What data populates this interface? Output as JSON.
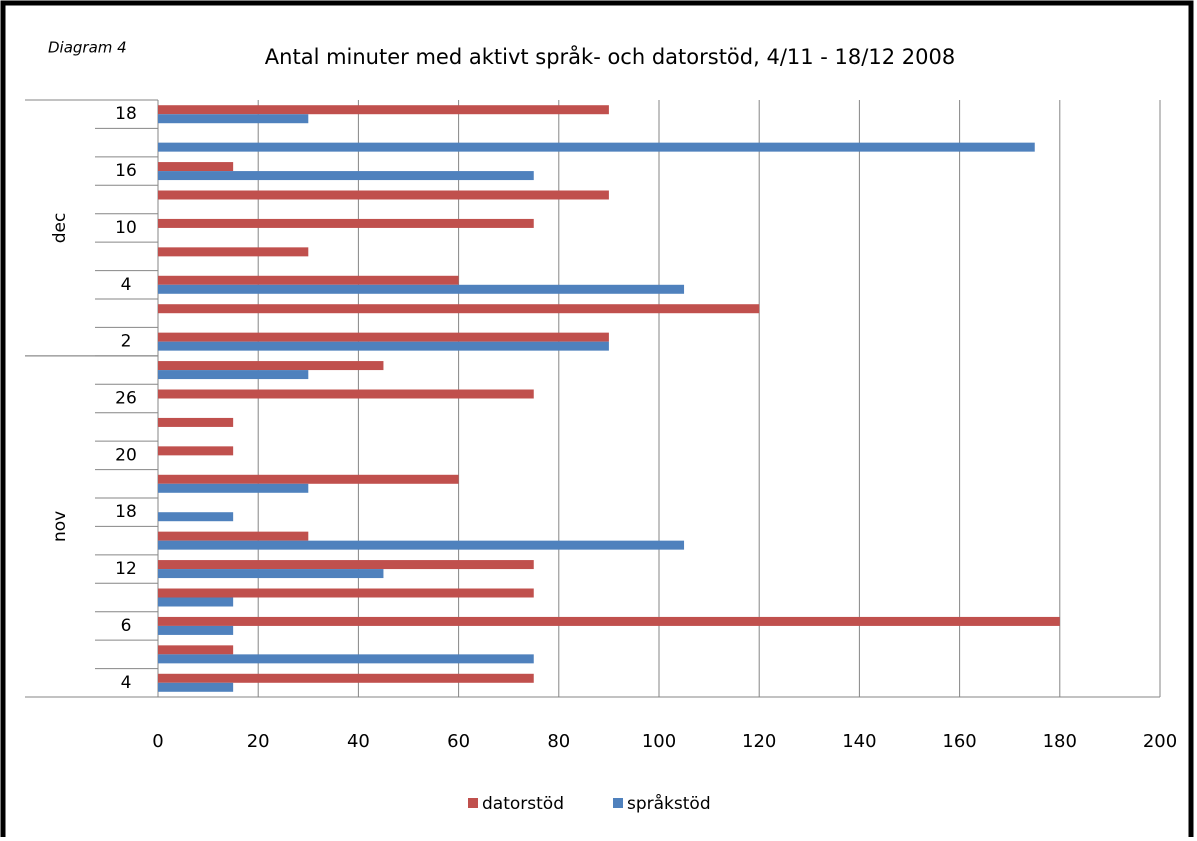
{
  "chart_data": {
    "type": "bar",
    "orientation": "horizontal",
    "title": "Antal minuter med aktivt språk- och datorstöd, 4/11 - 18/12 2008",
    "annotation": "Diagram 4",
    "category_groups": [
      {
        "name": "nov",
        "categories": [
          "4",
          null,
          "6",
          null,
          "12",
          null,
          "18",
          null,
          "20",
          null,
          "26",
          null
        ]
      },
      {
        "name": "dec",
        "categories": [
          "2",
          null,
          "4",
          null,
          "10",
          null,
          "16",
          null,
          "18"
        ]
      }
    ],
    "series": [
      {
        "name": "datorstöd",
        "color": "#c0504d",
        "values": [
          75,
          15,
          180,
          75,
          75,
          30,
          0,
          60,
          15,
          15,
          75,
          45,
          90,
          120,
          60,
          30,
          75,
          90,
          15,
          0,
          90
        ]
      },
      {
        "name": "språkstöd",
        "color": "#4f81bd",
        "values": [
          15,
          75,
          15,
          15,
          45,
          105,
          15,
          30,
          0,
          0,
          0,
          30,
          90,
          0,
          105,
          0,
          0,
          0,
          75,
          175,
          30
        ]
      }
    ],
    "xlim": [
      0,
      200
    ],
    "xticks": [
      0,
      20,
      40,
      60,
      80,
      100,
      120,
      140,
      160,
      180,
      200
    ],
    "grid": true,
    "legend": "bottom"
  }
}
